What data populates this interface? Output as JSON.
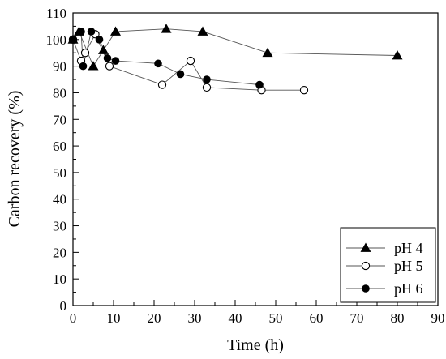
{
  "chart_data": {
    "type": "line",
    "title": "",
    "xlabel": "Time (h)",
    "ylabel": "Carbon recovery (%)",
    "xlim": [
      0,
      90
    ],
    "ylim": [
      0,
      110
    ],
    "xticks": [
      0,
      10,
      20,
      30,
      40,
      50,
      60,
      70,
      80,
      90
    ],
    "yticks": [
      0,
      10,
      20,
      30,
      40,
      50,
      60,
      70,
      80,
      90,
      100,
      110
    ],
    "grid": false,
    "legend_position": "bottom-right",
    "series": [
      {
        "name": "pH 4",
        "marker": "filled-triangle",
        "color": "#000000",
        "x": [
          0,
          1.5,
          5,
          7.5,
          10.5,
          23,
          32,
          48,
          80
        ],
        "y": [
          100,
          103,
          90,
          96,
          103,
          104,
          103,
          95,
          94
        ]
      },
      {
        "name": "pH 5",
        "marker": "open-circle",
        "color": "#000000",
        "x": [
          0,
          2,
          3,
          5.5,
          9,
          22,
          29,
          33,
          46.5,
          57
        ],
        "y": [
          100,
          92,
          95,
          102,
          90,
          83,
          92,
          82,
          81,
          81
        ]
      },
      {
        "name": "pH 6",
        "marker": "filled-circle",
        "color": "#000000",
        "x": [
          0,
          2,
          2.5,
          4.5,
          6.5,
          8.5,
          10.5,
          21,
          26.5,
          33,
          46
        ],
        "y": [
          100,
          103,
          90,
          103,
          100,
          93,
          92,
          91,
          87,
          85,
          83
        ]
      }
    ]
  }
}
